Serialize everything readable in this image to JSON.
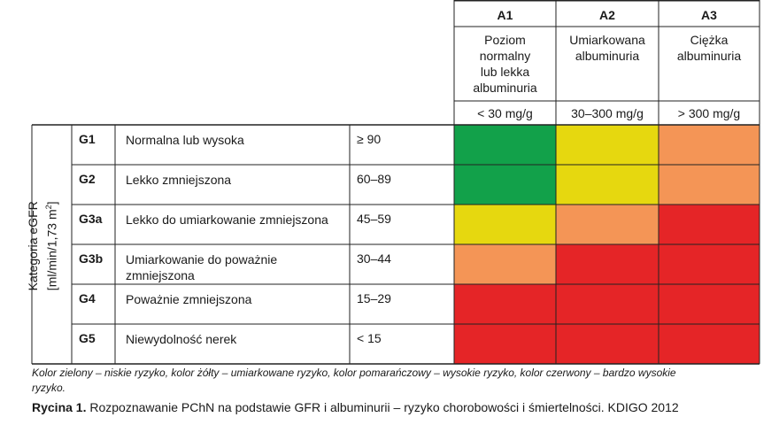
{
  "albuminuria": [
    {
      "code": "A1",
      "desc": [
        "Poziom",
        "normalny",
        "lub lekka",
        "albuminuria"
      ],
      "range": "< 30 mg/g"
    },
    {
      "code": "A2",
      "desc": [
        "Umiarkowana",
        "albuminuria"
      ],
      "range": "30–300 mg/g"
    },
    {
      "code": "A3",
      "desc": [
        "Ciężka",
        "albuminuria"
      ],
      "range": "> 300 mg/g"
    }
  ],
  "egfr_label": {
    "line1": "Kategoria eGFR",
    "line2": "[ml/min/1,73 m",
    "sup": "2",
    "line2_end": "]"
  },
  "gfr": [
    {
      "code": "G1",
      "desc": [
        "Normalna lub wysoka"
      ],
      "range": "≥ 90",
      "risk": [
        "green",
        "yellow",
        "orange"
      ]
    },
    {
      "code": "G2",
      "desc": [
        "Lekko zmniejszona"
      ],
      "range": "60–89",
      "risk": [
        "green",
        "yellow",
        "orange"
      ]
    },
    {
      "code": "G3a",
      "desc": [
        "Lekko do umiarkowanie zmniejszona"
      ],
      "range": "45–59",
      "risk": [
        "yellow",
        "orange",
        "red"
      ]
    },
    {
      "code": "G3b",
      "desc": [
        "Umiarkowanie do poważnie",
        "zmniejszona"
      ],
      "range": "30–44",
      "risk": [
        "orange",
        "red",
        "red"
      ]
    },
    {
      "code": "G4",
      "desc": [
        "Poważnie zmniejszona"
      ],
      "range": "15–29",
      "risk": [
        "red",
        "red",
        "red"
      ]
    },
    {
      "code": "G5",
      "desc": [
        "Niewydolność nerek"
      ],
      "range": "< 15",
      "risk": [
        "red",
        "red",
        "red"
      ]
    }
  ],
  "colors": {
    "green": "#12a14a",
    "yellow": "#e6d80f",
    "orange": "#f49556",
    "red": "#e52527"
  },
  "note": {
    "line1": "Kolor zielony – niskie ryzyko, kolor żółty – umiarkowane ryzyko, kolor pomarańczowy – wysokie ryzyko, kolor czerwony – bardzo wysokie",
    "line2": "ryzyko."
  },
  "caption": {
    "label": "Rycina 1.",
    "text": " Rozpoznawanie PChN na podstawie GFR i albuminurii – ryzyko chorobowości i śmiertelności. KDIGO 2012"
  }
}
